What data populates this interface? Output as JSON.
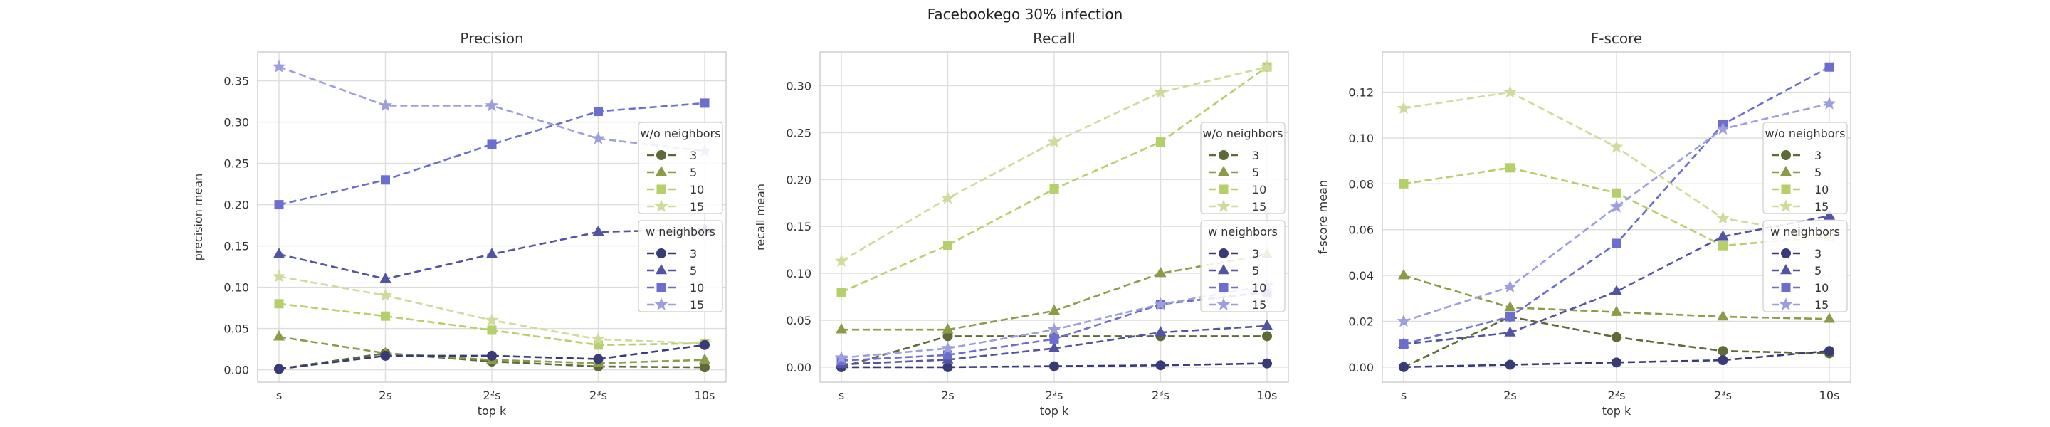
{
  "figure": {
    "title": "Facebookego 30% infection"
  },
  "style": {
    "wo_colors": {
      "3": "#5e6b38",
      "5": "#8a9c48",
      "10": "#b5cf6b",
      "15": "#cedb9c"
    },
    "w_colors": {
      "3": "#393b79",
      "5": "#5254a3",
      "10": "#6b6ecf",
      "15": "#9c9ede"
    },
    "markers": {
      "3": "circle",
      "5": "triangle",
      "10": "square",
      "15": "star"
    },
    "grid": true,
    "line_style": "dashed"
  },
  "chart_data": [
    {
      "type": "line",
      "title": "Precision",
      "xlabel": "top k",
      "ylabel": "precision mean",
      "categories": [
        "s",
        "2s",
        "2²s",
        "2³s",
        "10s"
      ],
      "ylim": [
        -0.015,
        0.385
      ],
      "yticks": [
        0.0,
        0.05,
        0.1,
        0.15,
        0.2,
        0.25,
        0.3,
        0.35
      ],
      "ytick_labels": [
        "0.00",
        "0.05",
        "0.10",
        "0.15",
        "0.20",
        "0.25",
        "0.30",
        "0.35"
      ],
      "legends": [
        {
          "title": "w/o neighbors",
          "group": "wo",
          "position": "center-right"
        },
        {
          "title": "w neighbors",
          "group": "w",
          "position": "center-right"
        }
      ],
      "series": [
        {
          "name": "3",
          "group": "wo",
          "values": [
            0.001,
            0.02,
            0.01,
            0.004,
            0.003
          ]
        },
        {
          "name": "5",
          "group": "wo",
          "values": [
            0.04,
            0.02,
            0.012,
            0.008,
            0.012
          ]
        },
        {
          "name": "10",
          "group": "wo",
          "values": [
            0.08,
            0.065,
            0.048,
            0.03,
            0.032
          ]
        },
        {
          "name": "15",
          "group": "wo",
          "values": [
            0.113,
            0.09,
            0.06,
            0.037,
            0.032
          ]
        },
        {
          "name": "3",
          "group": "w",
          "values": [
            0.001,
            0.017,
            0.017,
            0.013,
            0.03
          ]
        },
        {
          "name": "5",
          "group": "w",
          "values": [
            0.14,
            0.11,
            0.14,
            0.167,
            0.17
          ]
        },
        {
          "name": "10",
          "group": "w",
          "values": [
            0.2,
            0.23,
            0.273,
            0.313,
            0.323
          ]
        },
        {
          "name": "15",
          "group": "w",
          "values": [
            0.367,
            0.32,
            0.32,
            0.28,
            0.265
          ]
        }
      ]
    },
    {
      "type": "line",
      "title": "Recall",
      "xlabel": "top k",
      "ylabel": "recall mean",
      "categories": [
        "s",
        "2s",
        "2²s",
        "2³s",
        "10s"
      ],
      "ylim": [
        -0.016,
        0.336
      ],
      "yticks": [
        0.0,
        0.05,
        0.1,
        0.15,
        0.2,
        0.25,
        0.3
      ],
      "ytick_labels": [
        "0.00",
        "0.05",
        "0.10",
        "0.15",
        "0.20",
        "0.25",
        "0.30"
      ],
      "legends": [
        {
          "title": "w/o neighbors",
          "group": "wo",
          "position": "center-right"
        },
        {
          "title": "w neighbors",
          "group": "w",
          "position": "center-right"
        }
      ],
      "series": [
        {
          "name": "3",
          "group": "wo",
          "values": [
            0.0,
            0.033,
            0.033,
            0.033,
            0.033
          ]
        },
        {
          "name": "5",
          "group": "wo",
          "values": [
            0.04,
            0.04,
            0.06,
            0.1,
            0.12
          ]
        },
        {
          "name": "10",
          "group": "wo",
          "values": [
            0.08,
            0.13,
            0.19,
            0.24,
            0.32
          ]
        },
        {
          "name": "15",
          "group": "wo",
          "values": [
            0.113,
            0.18,
            0.24,
            0.293,
            0.32
          ]
        },
        {
          "name": "3",
          "group": "w",
          "values": [
            0.0,
            0.0,
            0.001,
            0.002,
            0.004
          ]
        },
        {
          "name": "5",
          "group": "w",
          "values": [
            0.003,
            0.008,
            0.02,
            0.037,
            0.044
          ]
        },
        {
          "name": "10",
          "group": "w",
          "values": [
            0.007,
            0.013,
            0.03,
            0.067,
            0.08
          ]
        },
        {
          "name": "15",
          "group": "w",
          "values": [
            0.01,
            0.02,
            0.04,
            0.067,
            0.087
          ]
        }
      ]
    },
    {
      "type": "line",
      "title": "F-score",
      "xlabel": "top k",
      "ylabel": "f-score mean",
      "categories": [
        "s",
        "2s",
        "2²s",
        "2³s",
        "10s"
      ],
      "ylim": [
        -0.0066,
        0.1376
      ],
      "yticks": [
        0.0,
        0.02,
        0.04,
        0.06,
        0.08,
        0.1,
        0.12
      ],
      "ytick_labels": [
        "0.00",
        "0.02",
        "0.04",
        "0.06",
        "0.08",
        "0.10",
        "0.12"
      ],
      "legends": [
        {
          "title": "w/o neighbors",
          "group": "wo",
          "position": "center-right"
        },
        {
          "title": "w neighbors",
          "group": "w",
          "position": "center-right"
        }
      ],
      "series": [
        {
          "name": "3",
          "group": "wo",
          "values": [
            0.0,
            0.022,
            0.013,
            0.007,
            0.006
          ]
        },
        {
          "name": "5",
          "group": "wo",
          "values": [
            0.04,
            0.026,
            0.024,
            0.022,
            0.021
          ]
        },
        {
          "name": "10",
          "group": "wo",
          "values": [
            0.08,
            0.087,
            0.076,
            0.053,
            0.057
          ]
        },
        {
          "name": "15",
          "group": "wo",
          "values": [
            0.113,
            0.12,
            0.096,
            0.065,
            0.057
          ]
        },
        {
          "name": "3",
          "group": "w",
          "values": [
            0.0,
            0.001,
            0.002,
            0.003,
            0.007
          ]
        },
        {
          "name": "5",
          "group": "w",
          "values": [
            0.01,
            0.015,
            0.033,
            0.057,
            0.066
          ]
        },
        {
          "name": "10",
          "group": "w",
          "values": [
            0.01,
            0.022,
            0.054,
            0.106,
            0.131
          ]
        },
        {
          "name": "15",
          "group": "w",
          "values": [
            0.02,
            0.035,
            0.07,
            0.104,
            0.115
          ]
        }
      ]
    }
  ]
}
